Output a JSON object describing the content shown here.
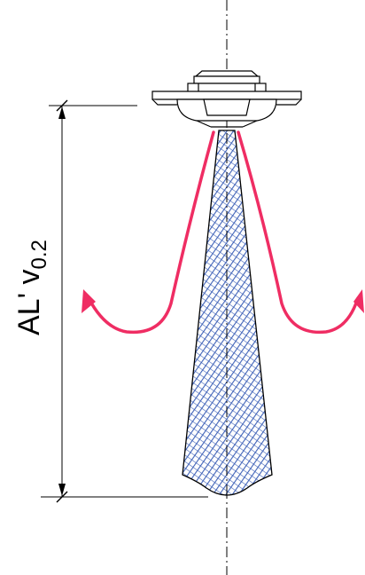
{
  "dimension": {
    "main": "AL' v",
    "subscript": "0.2"
  },
  "colors": {
    "airflow_arrow": "#ef2d63",
    "throw_jet_fill": "#3f62b8",
    "outline": "#000000",
    "background": "#ffffff"
  },
  "icons": {
    "diffuser": "ceiling-diffuser-icon",
    "arrows": "curved-arrow-icon"
  }
}
